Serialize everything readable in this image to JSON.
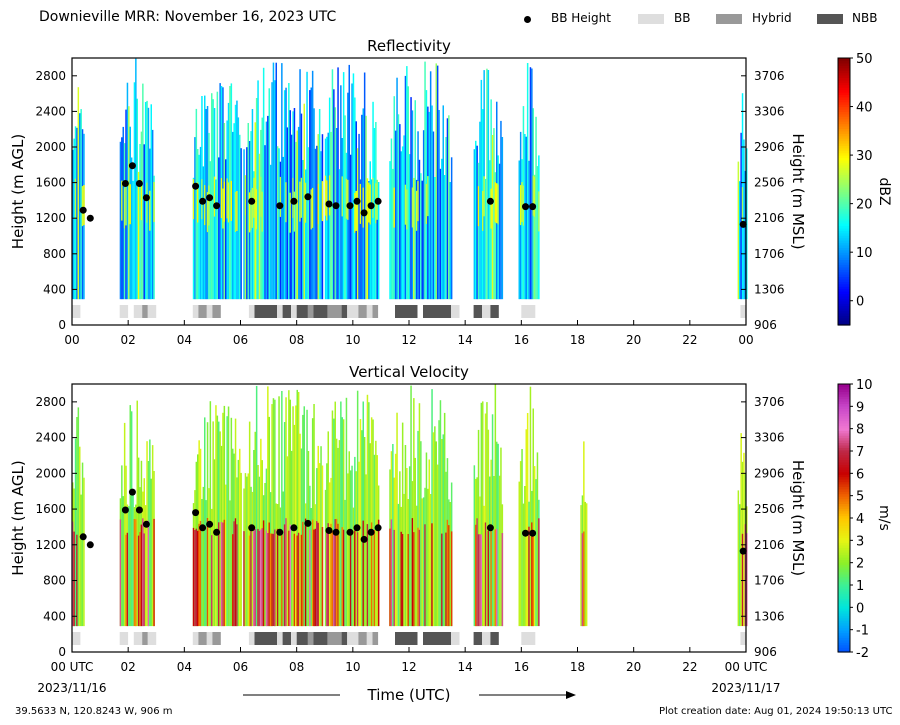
{
  "header": {
    "title": "Downieville MRR:  November 16, 2023 UTC"
  },
  "legend": [
    {
      "label": "BB Height",
      "kind": "dot",
      "color": "#000000"
    },
    {
      "label": "BB",
      "kind": "box",
      "color": "#dedede"
    },
    {
      "label": "Hybrid",
      "kind": "box",
      "color": "#999999"
    },
    {
      "label": "NBB",
      "kind": "box",
      "color": "#555555"
    }
  ],
  "footer": {
    "location": "39.5633 N, 120.8243 W, 906 m",
    "creation": "Plot creation date: Aug 01, 2024 19:50:13 UTC",
    "time_label": "Time (UTC)"
  },
  "chart_data": [
    {
      "type": "heatmap",
      "title": "Reflectivity",
      "ylabel": "Height (m AGL)",
      "ylabel_right": "Height (m MSL)",
      "ylim": [
        0,
        3000
      ],
      "yticks": [
        0,
        400,
        800,
        1200,
        1600,
        2000,
        2400,
        2800
      ],
      "yticks_right": [
        906,
        1306,
        1706,
        2106,
        2506,
        2906,
        3306,
        3706
      ],
      "xlim": [
        0,
        24
      ],
      "xticks": [
        "00",
        "02",
        "04",
        "06",
        "08",
        "10",
        "12",
        "14",
        "16",
        "18",
        "20",
        "22",
        "00"
      ],
      "colorbar": {
        "label": "dBZ",
        "min": -5,
        "max": 50,
        "ticks": [
          0,
          10,
          20,
          30,
          40,
          50
        ],
        "map": "jet"
      },
      "precip_periods_utc": [
        [
          0.0,
          0.4
        ],
        [
          1.7,
          2.9
        ],
        [
          4.3,
          6.0
        ],
        [
          6.1,
          8.9
        ],
        [
          9.0,
          10.9
        ],
        [
          11.3,
          13.5
        ],
        [
          14.3,
          15.3
        ],
        [
          15.9,
          16.6
        ],
        [
          23.7,
          24.0
        ]
      ],
      "bb_height_points": [
        {
          "t": 0.4,
          "h": 1290
        },
        {
          "t": 0.65,
          "h": 1200
        },
        {
          "t": 1.9,
          "h": 1590
        },
        {
          "t": 2.15,
          "h": 1790
        },
        {
          "t": 2.4,
          "h": 1590
        },
        {
          "t": 2.65,
          "h": 1430
        },
        {
          "t": 4.4,
          "h": 1560
        },
        {
          "t": 4.65,
          "h": 1390
        },
        {
          "t": 4.9,
          "h": 1430
        },
        {
          "t": 5.15,
          "h": 1340
        },
        {
          "t": 6.4,
          "h": 1390
        },
        {
          "t": 7.4,
          "h": 1340
        },
        {
          "t": 7.9,
          "h": 1390
        },
        {
          "t": 8.4,
          "h": 1440
        },
        {
          "t": 9.15,
          "h": 1360
        },
        {
          "t": 9.4,
          "h": 1340
        },
        {
          "t": 9.9,
          "h": 1340
        },
        {
          "t": 10.15,
          "h": 1390
        },
        {
          "t": 10.4,
          "h": 1260
        },
        {
          "t": 10.65,
          "h": 1340
        },
        {
          "t": 10.9,
          "h": 1390
        },
        {
          "t": 14.9,
          "h": 1390
        },
        {
          "t": 16.15,
          "h": 1330
        },
        {
          "t": 16.4,
          "h": 1330
        },
        {
          "t": 23.9,
          "h": 1130
        }
      ],
      "bb_type_segments": [
        {
          "start": 0.0,
          "end": 0.3,
          "type": "BB"
        },
        {
          "start": 1.7,
          "end": 2.0,
          "type": "BB"
        },
        {
          "start": 2.2,
          "end": 2.5,
          "type": "BB"
        },
        {
          "start": 2.5,
          "end": 2.7,
          "type": "Hybrid"
        },
        {
          "start": 2.7,
          "end": 3.0,
          "type": "BB"
        },
        {
          "start": 4.3,
          "end": 4.5,
          "type": "BB"
        },
        {
          "start": 4.5,
          "end": 4.8,
          "type": "Hybrid"
        },
        {
          "start": 4.8,
          "end": 5.0,
          "type": "BB"
        },
        {
          "start": 5.0,
          "end": 5.3,
          "type": "Hybrid"
        },
        {
          "start": 6.3,
          "end": 6.5,
          "type": "BB"
        },
        {
          "start": 6.5,
          "end": 7.3,
          "type": "NBB"
        },
        {
          "start": 7.3,
          "end": 7.5,
          "type": "BB"
        },
        {
          "start": 7.5,
          "end": 7.8,
          "type": "NBB"
        },
        {
          "start": 7.8,
          "end": 8.0,
          "type": "BB"
        },
        {
          "start": 8.0,
          "end": 8.4,
          "type": "NBB"
        },
        {
          "start": 8.4,
          "end": 8.6,
          "type": "Hybrid"
        },
        {
          "start": 8.6,
          "end": 9.1,
          "type": "NBB"
        },
        {
          "start": 9.1,
          "end": 9.6,
          "type": "Hybrid"
        },
        {
          "start": 9.6,
          "end": 9.8,
          "type": "NBB"
        },
        {
          "start": 9.8,
          "end": 10.2,
          "type": "BB"
        },
        {
          "start": 10.2,
          "end": 10.5,
          "type": "Hybrid"
        },
        {
          "start": 10.5,
          "end": 10.7,
          "type": "BB"
        },
        {
          "start": 10.7,
          "end": 10.9,
          "type": "Hybrid"
        },
        {
          "start": 11.5,
          "end": 12.3,
          "type": "NBB"
        },
        {
          "start": 12.5,
          "end": 13.5,
          "type": "NBB"
        },
        {
          "start": 13.5,
          "end": 13.8,
          "type": "BB"
        },
        {
          "start": 14.3,
          "end": 14.6,
          "type": "NBB"
        },
        {
          "start": 14.6,
          "end": 14.9,
          "type": "BB"
        },
        {
          "start": 14.9,
          "end": 15.2,
          "type": "NBB"
        },
        {
          "start": 16.0,
          "end": 16.5,
          "type": "BB"
        },
        {
          "start": 23.8,
          "end": 24.0,
          "type": "BB"
        }
      ]
    },
    {
      "type": "heatmap",
      "title": "Vertical Velocity",
      "ylabel": "Height (m AGL)",
      "ylabel_right": "Height (m MSL)",
      "ylim": [
        0,
        3000
      ],
      "yticks": [
        0,
        400,
        800,
        1200,
        1600,
        2000,
        2400,
        2800
      ],
      "yticks_right": [
        906,
        1306,
        1706,
        2106,
        2506,
        2906,
        3306,
        3706
      ],
      "xlim": [
        0,
        24
      ],
      "xticks": [
        "00 UTC",
        "02",
        "04",
        "06",
        "08",
        "10",
        "12",
        "14",
        "16",
        "18",
        "20",
        "22",
        "00 UTC"
      ],
      "xdates": [
        "2023/11/16",
        "2023/11/17"
      ],
      "colorbar": {
        "label": "m/s",
        "min": -2,
        "max": 10,
        "ticks": [
          -2,
          -1,
          0,
          1,
          2,
          3,
          4,
          5,
          6,
          7,
          8,
          9,
          10
        ],
        "map": "velocity"
      },
      "precip_periods_utc": [
        [
          0.0,
          0.4
        ],
        [
          1.7,
          2.9
        ],
        [
          4.3,
          6.0
        ],
        [
          6.1,
          8.9
        ],
        [
          9.0,
          10.9
        ],
        [
          11.3,
          13.5
        ],
        [
          14.3,
          15.3
        ],
        [
          15.9,
          16.6
        ],
        [
          18.1,
          18.3
        ],
        [
          23.7,
          24.0
        ]
      ],
      "bb_height_points": [
        {
          "t": 0.4,
          "h": 1290
        },
        {
          "t": 0.65,
          "h": 1200
        },
        {
          "t": 1.9,
          "h": 1590
        },
        {
          "t": 2.15,
          "h": 1790
        },
        {
          "t": 2.4,
          "h": 1590
        },
        {
          "t": 2.65,
          "h": 1430
        },
        {
          "t": 4.4,
          "h": 1560
        },
        {
          "t": 4.65,
          "h": 1390
        },
        {
          "t": 4.9,
          "h": 1430
        },
        {
          "t": 5.15,
          "h": 1340
        },
        {
          "t": 6.4,
          "h": 1390
        },
        {
          "t": 7.4,
          "h": 1340
        },
        {
          "t": 7.9,
          "h": 1390
        },
        {
          "t": 8.4,
          "h": 1440
        },
        {
          "t": 9.15,
          "h": 1360
        },
        {
          "t": 9.4,
          "h": 1340
        },
        {
          "t": 9.9,
          "h": 1340
        },
        {
          "t": 10.15,
          "h": 1390
        },
        {
          "t": 10.4,
          "h": 1260
        },
        {
          "t": 10.65,
          "h": 1340
        },
        {
          "t": 10.9,
          "h": 1390
        },
        {
          "t": 14.9,
          "h": 1390
        },
        {
          "t": 16.15,
          "h": 1330
        },
        {
          "t": 16.4,
          "h": 1330
        },
        {
          "t": 23.9,
          "h": 1130
        }
      ]
    }
  ]
}
